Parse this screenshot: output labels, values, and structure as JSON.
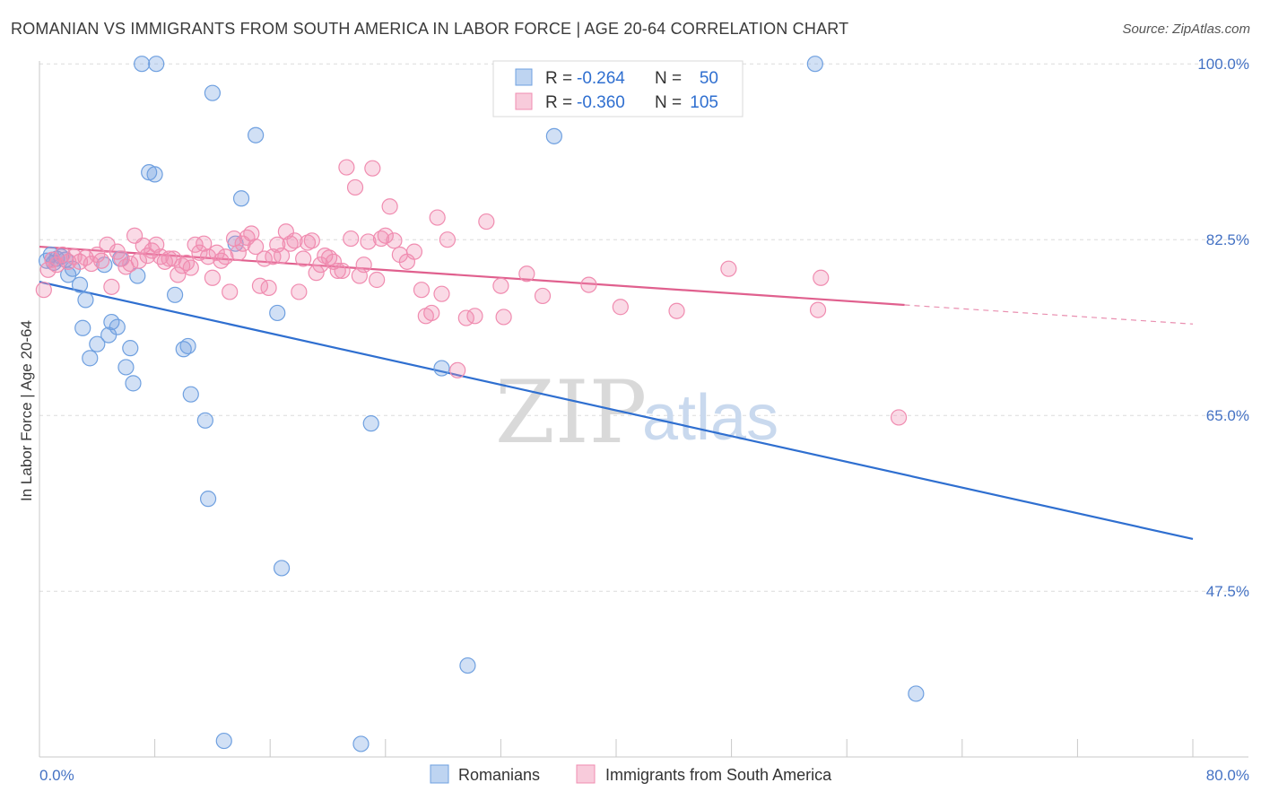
{
  "header": {
    "title": "ROMANIAN VS IMMIGRANTS FROM SOUTH AMERICA IN LABOR FORCE | AGE 20-64 CORRELATION CHART",
    "source": "Source: ZipAtlas.com"
  },
  "watermark": {
    "zip": "ZIP",
    "atlas": "atlas"
  },
  "legend": {
    "rows": [
      {
        "r_label": "R =",
        "r_value": "-0.264",
        "n_label": "N =",
        "n_value": "50",
        "color": "#6fa0e0"
      },
      {
        "r_label": "R =",
        "r_value": "-0.360",
        "n_label": "N =",
        "n_value": "105",
        "color": "#f08cb0"
      }
    ]
  },
  "bottom_legend": [
    {
      "label": "Romanians",
      "color": "#6fa0e0"
    },
    {
      "label": "Immigrants from South America",
      "color": "#f08cb0"
    }
  ],
  "chart_data": {
    "type": "scatter",
    "title": "ROMANIAN VS IMMIGRANTS FROM SOUTH AMERICA IN LABOR FORCE | AGE 20-64 CORRELATION CHART",
    "xlabel": "",
    "ylabel": "In Labor Force | Age 20-64",
    "xlim": [
      0,
      80
    ],
    "ylim": [
      31.0,
      101.0
    ],
    "x_tick_labels": [
      "0.0%",
      "80.0%"
    ],
    "y_ticks": [
      47.5,
      65.0,
      82.5,
      100.0
    ],
    "y_tick_labels": [
      "47.5%",
      "65.0%",
      "82.5%",
      "100.0%"
    ],
    "grid": true,
    "legend_position": "top-center",
    "series": [
      {
        "name": "Romanians",
        "color": "#6fa0e0",
        "line_color": "#2f6fd0",
        "trend": {
          "x": [
            0,
            80
          ],
          "y": [
            78.3,
            52.7
          ]
        },
        "points": [
          [
            0.5,
            80.4
          ],
          [
            0.8,
            81.0
          ],
          [
            1.0,
            80.2
          ],
          [
            1.2,
            80.6
          ],
          [
            1.5,
            80.8
          ],
          [
            1.8,
            80.5
          ],
          [
            2.0,
            79.0
          ],
          [
            2.3,
            79.6
          ],
          [
            2.8,
            78.0
          ],
          [
            3.0,
            73.7
          ],
          [
            3.2,
            76.5
          ],
          [
            3.5,
            70.7
          ],
          [
            4.0,
            72.1
          ],
          [
            4.5,
            80.0
          ],
          [
            4.8,
            73.0
          ],
          [
            5.0,
            74.3
          ],
          [
            5.4,
            73.8
          ],
          [
            5.6,
            80.6
          ],
          [
            6.0,
            69.8
          ],
          [
            6.3,
            71.7
          ],
          [
            6.5,
            68.2
          ],
          [
            6.8,
            78.9
          ],
          [
            7.1,
            100.0
          ],
          [
            7.6,
            89.2
          ],
          [
            8.0,
            89.0
          ],
          [
            8.1,
            100.0
          ],
          [
            9.4,
            77.0
          ],
          [
            10.0,
            71.6
          ],
          [
            10.3,
            71.9
          ],
          [
            10.5,
            67.1
          ],
          [
            11.5,
            64.5
          ],
          [
            11.7,
            56.7
          ],
          [
            12.0,
            97.1
          ],
          [
            12.8,
            32.6
          ],
          [
            13.6,
            82.1
          ],
          [
            14.0,
            86.6
          ],
          [
            15.0,
            92.9
          ],
          [
            16.5,
            75.2
          ],
          [
            16.8,
            49.8
          ],
          [
            22.3,
            32.3
          ],
          [
            23.0,
            64.2
          ],
          [
            27.9,
            69.7
          ],
          [
            29.7,
            40.1
          ],
          [
            35.7,
            92.8
          ],
          [
            53.8,
            100.0
          ],
          [
            60.8,
            37.3
          ]
        ]
      },
      {
        "name": "Immigrants from South America",
        "color": "#f08cb0",
        "line_color": "#e0608e",
        "trend": {
          "x": [
            0,
            60
          ],
          "y": [
            81.8,
            76.0
          ]
        },
        "trend_dashed": {
          "x": [
            60,
            80
          ],
          "y": [
            76.0,
            74.1
          ]
        },
        "points": [
          [
            0.3,
            77.5
          ],
          [
            0.6,
            79.5
          ],
          [
            0.9,
            80.5
          ],
          [
            1.2,
            80.0
          ],
          [
            1.6,
            81.0
          ],
          [
            2.0,
            80.3
          ],
          [
            2.4,
            80.8
          ],
          [
            2.8,
            80.3
          ],
          [
            3.2,
            80.7
          ],
          [
            3.6,
            80.1
          ],
          [
            4.0,
            81.0
          ],
          [
            4.3,
            80.4
          ],
          [
            4.7,
            82.0
          ],
          [
            5.0,
            77.8
          ],
          [
            5.4,
            81.3
          ],
          [
            5.7,
            80.6
          ],
          [
            6.0,
            79.8
          ],
          [
            6.3,
            80.1
          ],
          [
            6.6,
            82.9
          ],
          [
            6.9,
            80.4
          ],
          [
            7.2,
            81.9
          ],
          [
            7.5,
            80.9
          ],
          [
            7.8,
            81.4
          ],
          [
            8.1,
            82.0
          ],
          [
            8.4,
            80.8
          ],
          [
            8.7,
            80.3
          ],
          [
            9.0,
            80.6
          ],
          [
            9.3,
            80.6
          ],
          [
            9.6,
            79.0
          ],
          [
            9.9,
            79.9
          ],
          [
            10.2,
            80.2
          ],
          [
            10.5,
            79.7
          ],
          [
            10.8,
            82.0
          ],
          [
            11.1,
            81.2
          ],
          [
            11.4,
            82.1
          ],
          [
            11.7,
            80.8
          ],
          [
            12.0,
            78.7
          ],
          [
            12.3,
            81.2
          ],
          [
            12.6,
            80.4
          ],
          [
            12.9,
            80.8
          ],
          [
            13.2,
            77.3
          ],
          [
            13.5,
            82.6
          ],
          [
            13.8,
            81.2
          ],
          [
            14.1,
            82.1
          ],
          [
            14.4,
            82.7
          ],
          [
            14.7,
            83.1
          ],
          [
            15.0,
            81.8
          ],
          [
            15.3,
            77.9
          ],
          [
            15.6,
            80.6
          ],
          [
            15.9,
            77.7
          ],
          [
            16.2,
            80.8
          ],
          [
            16.5,
            82.0
          ],
          [
            16.8,
            80.9
          ],
          [
            17.1,
            83.3
          ],
          [
            17.4,
            82.1
          ],
          [
            17.7,
            82.4
          ],
          [
            18.0,
            77.3
          ],
          [
            18.3,
            80.6
          ],
          [
            18.6,
            82.2
          ],
          [
            18.9,
            82.4
          ],
          [
            19.2,
            79.2
          ],
          [
            19.5,
            80.0
          ],
          [
            19.8,
            80.9
          ],
          [
            20.1,
            80.7
          ],
          [
            20.4,
            80.3
          ],
          [
            20.7,
            79.4
          ],
          [
            21.0,
            79.4
          ],
          [
            21.3,
            89.7
          ],
          [
            21.6,
            82.6
          ],
          [
            21.9,
            87.7
          ],
          [
            22.2,
            78.9
          ],
          [
            22.5,
            80.0
          ],
          [
            22.8,
            82.3
          ],
          [
            23.1,
            89.6
          ],
          [
            23.4,
            78.5
          ],
          [
            23.7,
            82.6
          ],
          [
            24.0,
            82.9
          ],
          [
            24.3,
            85.8
          ],
          [
            24.6,
            82.4
          ],
          [
            25.0,
            81.0
          ],
          [
            25.5,
            80.3
          ],
          [
            26.0,
            81.3
          ],
          [
            26.5,
            77.5
          ],
          [
            26.8,
            74.9
          ],
          [
            27.2,
            75.2
          ],
          [
            27.6,
            84.7
          ],
          [
            27.9,
            77.1
          ],
          [
            28.3,
            82.5
          ],
          [
            29.0,
            69.5
          ],
          [
            29.6,
            74.7
          ],
          [
            30.2,
            74.9
          ],
          [
            31.0,
            84.3
          ],
          [
            32.0,
            77.9
          ],
          [
            32.2,
            74.8
          ],
          [
            33.8,
            79.1
          ],
          [
            34.9,
            76.9
          ],
          [
            38.1,
            78.0
          ],
          [
            40.3,
            75.8
          ],
          [
            44.2,
            75.4
          ],
          [
            47.8,
            79.6
          ],
          [
            54.0,
            75.5
          ],
          [
            54.2,
            78.7
          ],
          [
            59.6,
            64.8
          ]
        ]
      }
    ]
  }
}
